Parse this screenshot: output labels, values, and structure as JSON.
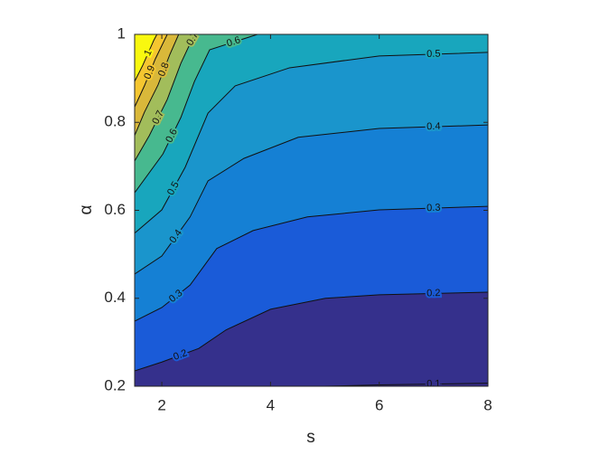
{
  "chart_data": {
    "type": "contour",
    "xlabel": "s",
    "ylabel": "α",
    "xlim": [
      1.5,
      8
    ],
    "ylim": [
      0.2,
      1
    ],
    "xticks": [
      2,
      4,
      6,
      8
    ],
    "yticks": [
      0.2,
      0.4,
      0.6,
      0.8,
      1
    ],
    "colors": [
      "#352a87",
      "#35308c",
      "#1a5bd8",
      "#1580d4",
      "#1a95cc",
      "#18a6bd",
      "#47b98f",
      "#a2bd5b",
      "#d9b83a",
      "#f5c630",
      "#f9f80f"
    ],
    "levels": [
      {
        "level": 0.1,
        "x": [
          5.0,
          6.0,
          8.0
        ],
        "y": [
          0.2,
          0.203,
          0.207
        ]
      },
      {
        "level": 0.2,
        "x": [
          1.5,
          2.0,
          2.68,
          3.18,
          4.0,
          5.01,
          6.0,
          8.0
        ],
        "y": [
          0.235,
          0.255,
          0.286,
          0.328,
          0.375,
          0.4,
          0.408,
          0.414
        ]
      },
      {
        "level": 0.3,
        "x": [
          1.5,
          2.0,
          2.52,
          3.01,
          3.68,
          4.68,
          6.0,
          8.0
        ],
        "y": [
          0.348,
          0.379,
          0.43,
          0.513,
          0.554,
          0.585,
          0.601,
          0.609
        ]
      },
      {
        "level": 0.4,
        "x": [
          1.5,
          2.0,
          2.52,
          2.85,
          3.51,
          4.51,
          6.0,
          8.0
        ],
        "y": [
          0.455,
          0.496,
          0.585,
          0.667,
          0.718,
          0.766,
          0.786,
          0.794
        ]
      },
      {
        "level": 0.5,
        "x": [
          1.5,
          2.0,
          2.43,
          2.85,
          3.35,
          4.35,
          6.0,
          8.0
        ],
        "y": [
          0.548,
          0.601,
          0.698,
          0.821,
          0.883,
          0.924,
          0.951,
          0.959
        ]
      },
      {
        "level": 0.6,
        "x": [
          1.5,
          2.02,
          2.35,
          2.6,
          2.88,
          3.76
        ],
        "y": [
          0.64,
          0.728,
          0.811,
          0.893,
          0.965,
          1.0
        ]
      },
      {
        "level": 0.7,
        "x": [
          1.5,
          1.77,
          2.1,
          2.35,
          2.52,
          2.62
        ],
        "y": [
          0.712,
          0.77,
          0.852,
          0.934,
          0.979,
          1.0
        ]
      },
      {
        "level": 0.8,
        "x": [
          1.5,
          1.68,
          1.93,
          2.15,
          2.31
        ],
        "y": [
          0.77,
          0.823,
          0.885,
          0.955,
          1.0
        ]
      },
      {
        "level": 0.9,
        "x": [
          1.5,
          1.68,
          1.88,
          2.1
        ],
        "y": [
          0.835,
          0.883,
          0.944,
          1.0
        ]
      },
      {
        "level": 1,
        "x": [
          1.5,
          1.65,
          1.85,
          1.91
        ],
        "y": [
          0.893,
          0.93,
          0.986,
          1.0
        ]
      }
    ]
  }
}
